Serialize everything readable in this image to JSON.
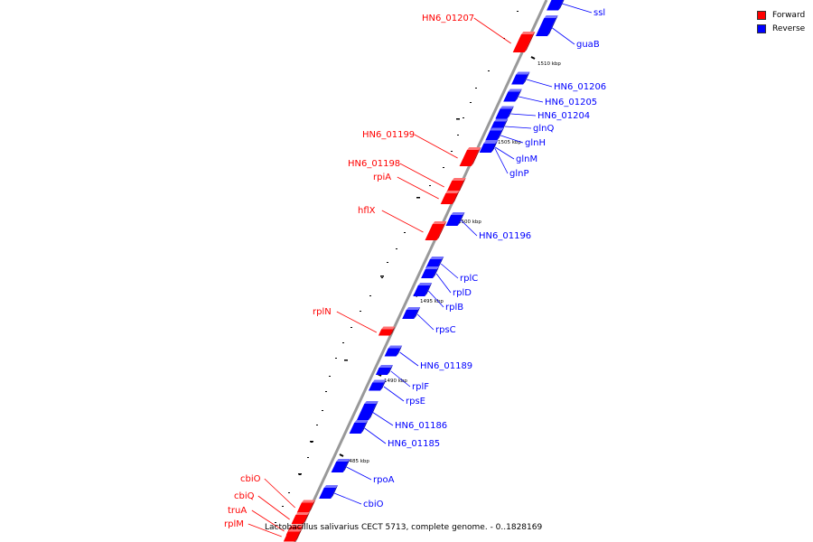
{
  "legend": {
    "forward_label": "Forward",
    "reverse_label": "Reverse",
    "forward_color": "#ff0000",
    "reverse_color": "#0000ff"
  },
  "caption": "Lactobacillus salivarius CECT 5713, complete genome. - 0..1828169",
  "colors": {
    "forward": "#ff0000",
    "reverse": "#0000ff",
    "backbone": "#999999",
    "tick": "#000000"
  },
  "scale_ticks": [
    "1510 kbp",
    "1505 kbp",
    "1500 kbp",
    "1495 kbp",
    "1490 kbp",
    "1485 kbp"
  ],
  "genes": [
    {
      "name": "ssl",
      "strand": "reverse"
    },
    {
      "name": "HN6_01207",
      "strand": "forward"
    },
    {
      "name": "guaB",
      "strand": "reverse"
    },
    {
      "name": "HN6_01206",
      "strand": "reverse"
    },
    {
      "name": "HN6_01205",
      "strand": "reverse"
    },
    {
      "name": "HN6_01204",
      "strand": "reverse"
    },
    {
      "name": "glnQ",
      "strand": "reverse"
    },
    {
      "name": "HN6_01199",
      "strand": "forward"
    },
    {
      "name": "glnH",
      "strand": "reverse"
    },
    {
      "name": "glnM",
      "strand": "reverse"
    },
    {
      "name": "HN6_01198",
      "strand": "forward"
    },
    {
      "name": "glnP",
      "strand": "reverse"
    },
    {
      "name": "rpiA",
      "strand": "forward"
    },
    {
      "name": "hflX",
      "strand": "forward"
    },
    {
      "name": "HN6_01196",
      "strand": "reverse"
    },
    {
      "name": "rplC",
      "strand": "reverse"
    },
    {
      "name": "rplD",
      "strand": "reverse"
    },
    {
      "name": "rplB",
      "strand": "reverse"
    },
    {
      "name": "rplN",
      "strand": "forward"
    },
    {
      "name": "rpsC",
      "strand": "reverse"
    },
    {
      "name": "HN6_01189",
      "strand": "reverse"
    },
    {
      "name": "rplF",
      "strand": "reverse"
    },
    {
      "name": "rpsE",
      "strand": "reverse"
    },
    {
      "name": "HN6_01186",
      "strand": "reverse"
    },
    {
      "name": "HN6_01185",
      "strand": "reverse"
    },
    {
      "name": "rpoA",
      "strand": "reverse"
    },
    {
      "name": "cbiO",
      "strand": "reverse"
    },
    {
      "name": "cbiO",
      "strand": "forward"
    },
    {
      "name": "cbiQ",
      "strand": "forward"
    },
    {
      "name": "truA",
      "strand": "forward"
    },
    {
      "name": "rplM",
      "strand": "forward"
    }
  ]
}
